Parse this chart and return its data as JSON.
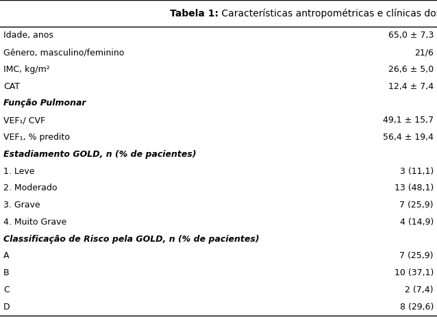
{
  "title_bold": "Tabela 1:",
  "title_regular": " Características antropométricas e clínicas dos pacientes com DPOC",
  "rows": [
    {
      "label": "Idade, anos",
      "value": "65,0 ± 7,3",
      "style": "normal"
    },
    {
      "label": "Gênero, masculino/feminino",
      "value": "21/6",
      "style": "normal"
    },
    {
      "label": "IMC, kg/m²",
      "value": "26,6 ± 5,0",
      "style": "normal"
    },
    {
      "label": "CAT",
      "value": "12,4 ± 7,4",
      "style": "normal"
    },
    {
      "label": "Função Pulmonar",
      "value": "",
      "style": "bold_italic"
    },
    {
      "label": "VEF₁/ CVF",
      "value": "49,1 ± 15,7",
      "style": "normal"
    },
    {
      "label": "VEF₁, % predito",
      "value": "56,4 ± 19,4",
      "style": "normal"
    },
    {
      "label": "Estadiamento GOLD, n (% de pacientes)",
      "value": "",
      "style": "bold_italic"
    },
    {
      "label": "1. Leve",
      "value": "3 (11,1)",
      "style": "normal"
    },
    {
      "label": "2. Moderado",
      "value": "13 (48,1)",
      "style": "normal"
    },
    {
      "label": "3. Grave",
      "value": "7 (25,9)",
      "style": "normal"
    },
    {
      "label": "4. Muito Grave",
      "value": "4 (14,9)",
      "style": "normal"
    },
    {
      "label": "Classificação de Risco pela GOLD, n (% de pacientes)",
      "value": "",
      "style": "bold_italic"
    },
    {
      "label": "A",
      "value": "7 (25,9)",
      "style": "normal"
    },
    {
      "label": "B",
      "value": "10 (37,1)",
      "style": "normal"
    },
    {
      "label": "C",
      "value": "2 (7,4)",
      "style": "normal"
    },
    {
      "label": "D",
      "value": "8 (29,6)",
      "style": "normal"
    }
  ],
  "bg_color": "#ffffff",
  "font_size": 9.0,
  "header_font_size": 10.0,
  "fig_width": 6.38,
  "fig_height": 4.63,
  "dpi": 100
}
